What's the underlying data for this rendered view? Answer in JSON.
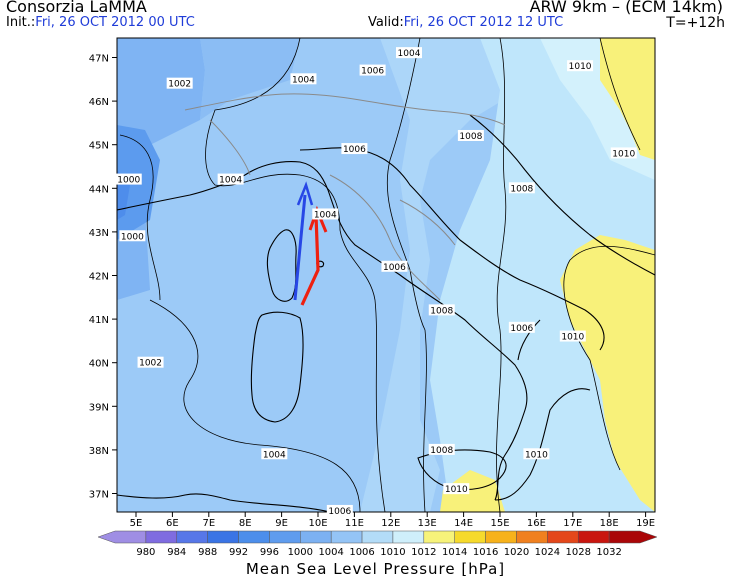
{
  "header": {
    "organization": "Consorzia LaMMA",
    "model": "ARW 9km – (ECM 14km)",
    "init_label": "Init.:",
    "init_value": "Fri, 26 OCT 2012  00 UTC",
    "valid_label": "Valid:",
    "valid_value": "Fri, 26 OCT 2012  12 UTC",
    "forecast_step": "T=+12h"
  },
  "map": {
    "lat_labels": [
      "47N",
      "46N",
      "45N",
      "44N",
      "43N",
      "42N",
      "41N",
      "40N",
      "39N",
      "38N",
      "37N"
    ],
    "lon_labels": [
      "5E",
      "6E",
      "7E",
      "8E",
      "9E",
      "10E",
      "11E",
      "12E",
      "13E",
      "14E",
      "15E",
      "16E",
      "17E",
      "18E",
      "19E"
    ],
    "isobar_labels": [
      {
        "text": "1004",
        "lon": 12.5,
        "lat": 47.1
      },
      {
        "text": "1010",
        "lon": 17.2,
        "lat": 46.8
      },
      {
        "text": "1002",
        "lon": 6.2,
        "lat": 46.4
      },
      {
        "text": "1004",
        "lon": 9.6,
        "lat": 46.5
      },
      {
        "text": "1006",
        "lon": 11.5,
        "lat": 46.7
      },
      {
        "text": "1008",
        "lon": 14.2,
        "lat": 45.2
      },
      {
        "text": "1006",
        "lon": 11.0,
        "lat": 44.9
      },
      {
        "text": "1010",
        "lon": 18.4,
        "lat": 44.8
      },
      {
        "text": "1000",
        "lon": 4.8,
        "lat": 44.2
      },
      {
        "text": "1004",
        "lon": 7.6,
        "lat": 44.2
      },
      {
        "text": "1008",
        "lon": 15.6,
        "lat": 44.0
      },
      {
        "text": "1004",
        "lon": 10.2,
        "lat": 43.4
      },
      {
        "text": "1000",
        "lon": 4.9,
        "lat": 42.9
      },
      {
        "text": "1006",
        "lon": 12.1,
        "lat": 42.2
      },
      {
        "text": "1008",
        "lon": 13.4,
        "lat": 41.2
      },
      {
        "text": "1006",
        "lon": 15.6,
        "lat": 40.8
      },
      {
        "text": "1010",
        "lon": 17.0,
        "lat": 40.6
      },
      {
        "text": "1002",
        "lon": 5.4,
        "lat": 40.0
      },
      {
        "text": "1004",
        "lon": 8.8,
        "lat": 37.9
      },
      {
        "text": "1008",
        "lon": 13.4,
        "lat": 38.0
      },
      {
        "text": "1010",
        "lon": 16.0,
        "lat": 37.9
      },
      {
        "text": "1010",
        "lon": 13.8,
        "lat": 37.1
      },
      {
        "text": "1006",
        "lon": 10.6,
        "lat": 36.6
      }
    ]
  },
  "legend": {
    "title": "Mean Sea Level Pressure [hPa]",
    "values": [
      "980",
      "984",
      "988",
      "992",
      "996",
      "1000",
      "1004",
      "1006",
      "1010",
      "1012",
      "1014",
      "1016",
      "1020",
      "1024",
      "1028",
      "1032"
    ],
    "colors": [
      "#9f8ee4",
      "#7f6ce0",
      "#5777e8",
      "#3a74e5",
      "#4c8eeb",
      "#5f9cee",
      "#7cb1f2",
      "#94c4f6",
      "#b3dcf8",
      "#cfeffb",
      "#f7f37a",
      "#f6da2c",
      "#f7b21b",
      "#f0801f",
      "#e4471a",
      "#c9160f",
      "#aa0608"
    ]
  },
  "arrows": {
    "blue_color": "#2747e6",
    "red_color": "#ee2010"
  }
}
